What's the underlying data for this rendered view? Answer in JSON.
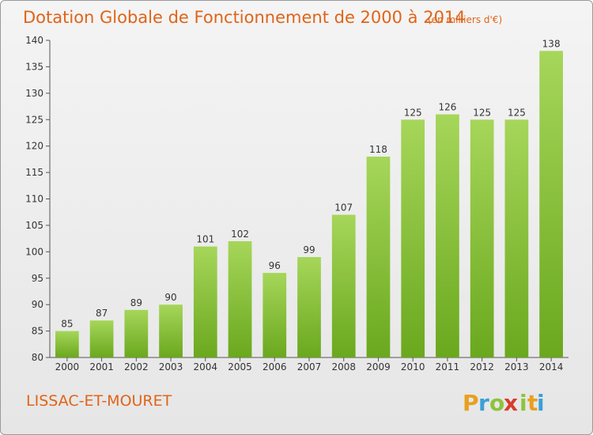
{
  "title": "Dotation Globale de Fonctionnement de 2000 à 2014",
  "subtitle": "(en milliers d'€)",
  "commune": "LISSAC-ET-MOURET",
  "brand": {
    "letters": [
      "P",
      "r",
      "o",
      "x",
      "i",
      "t",
      "i"
    ],
    "colors": [
      "#e8a020",
      "#3aa0d8",
      "#8cc43c",
      "#d83c2c",
      "#8cc43c",
      "#e8a020",
      "#3aa0d8"
    ]
  },
  "colors": {
    "bar_top": "#a6d65a",
    "bar_bottom": "#6aa81e",
    "axis": "#555555",
    "text": "#333333",
    "accent": "#e06418"
  },
  "chart_data": {
    "type": "bar",
    "title": "Dotation Globale de Fonctionnement de 2000 à 2014",
    "subtitle": "(en milliers d'€)",
    "xlabel": "",
    "ylabel": "",
    "categories": [
      "2000",
      "2001",
      "2002",
      "2003",
      "2004",
      "2005",
      "2006",
      "2007",
      "2008",
      "2009",
      "2010",
      "2011",
      "2012",
      "2013",
      "2014"
    ],
    "values": [
      85,
      87,
      89,
      90,
      101,
      102,
      96,
      99,
      107,
      118,
      125,
      126,
      125,
      125,
      138
    ],
    "value_labels": [
      "85",
      "87",
      "89",
      "90",
      "101",
      "102",
      "96",
      "99",
      "107",
      "118",
      "125",
      "126",
      "125",
      "125",
      "138"
    ],
    "ylim": [
      80,
      140
    ],
    "yticks": [
      "80",
      "85",
      "90",
      "95",
      "100",
      "105",
      "110",
      "115",
      "120",
      "125",
      "130",
      "135",
      "140"
    ],
    "grid": false,
    "legend": "none"
  }
}
